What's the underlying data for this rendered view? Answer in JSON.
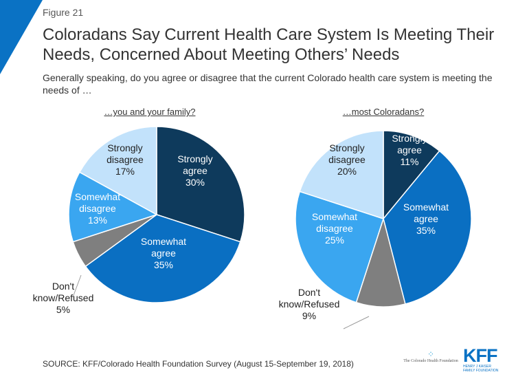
{
  "figure_label": "Figure 21",
  "title": "Coloradans Say Current Health Care System Is Meeting Their Needs, Concerned About Meeting Others’ Needs",
  "subtitle": "Generally speaking, do you agree or disagree that the current Colorado health care system is meeting the needs of …",
  "source": "SOURCE: KFF/Colorado Health Foundation Survey (August 15-September 19, 2018)",
  "logos": {
    "chf": "The Colorado Health Foundation",
    "kff": "KFF",
    "kff_sub": "HENRY J KAISER FAMILY FOUNDATION"
  },
  "colors": {
    "accent": "#0a72c4",
    "strongly_agree": "#0e3a5c",
    "somewhat_agree": "#0a6fc2",
    "dont_know": "#7f7f7f",
    "somewhat_disagree": "#3aa6f0",
    "strongly_disagree": "#c2e2fb"
  },
  "chart_data": [
    {
      "type": "pie",
      "title": "…you and your family?",
      "categories": [
        "Strongly agree",
        "Somewhat agree",
        "Don't know/Refused",
        "Somewhat disagree",
        "Strongly disagree"
      ],
      "values": [
        30,
        35,
        5,
        13,
        17
      ],
      "labels": [
        [
          "Strongly",
          "agree",
          "30%"
        ],
        [
          "Somewhat",
          "agree",
          "35%"
        ],
        [
          "Don't",
          "know/Refused",
          "5%"
        ],
        [
          "Somewhat",
          "disagree",
          "13%"
        ],
        [
          "Strongly",
          "disagree",
          "17%"
        ]
      ]
    },
    {
      "type": "pie",
      "title": "…most Coloradans?",
      "categories": [
        "Strongly agree",
        "Somewhat agree",
        "Don't know/Refused",
        "Somewhat disagree",
        "Strongly disagree"
      ],
      "values": [
        11,
        35,
        9,
        25,
        20
      ],
      "labels": [
        [
          "Strongly",
          "agree",
          "11%"
        ],
        [
          "Somewhat",
          "agree",
          "35%"
        ],
        [
          "Don't",
          "know/Refused",
          "9%"
        ],
        [
          "Somewhat",
          "disagree",
          "25%"
        ],
        [
          "Strongly",
          "disagree",
          "20%"
        ]
      ]
    }
  ]
}
